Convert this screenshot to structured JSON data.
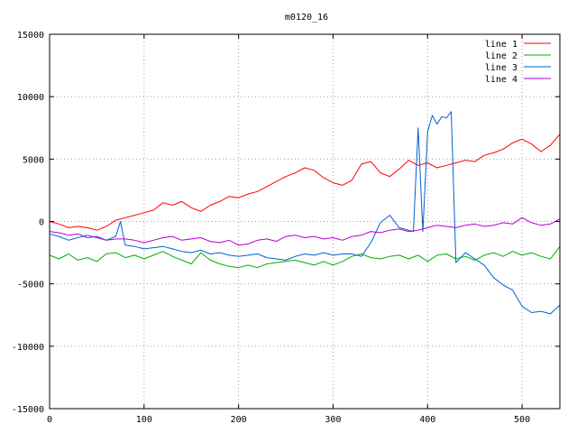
{
  "chart_data": {
    "type": "line",
    "title": "m0120_16",
    "xlabel": "",
    "ylabel": "",
    "xlim": [
      0,
      540
    ],
    "ylim": [
      -15000,
      15000
    ],
    "xticks": [
      0,
      100,
      200,
      300,
      400,
      500
    ],
    "yticks": [
      -15000,
      -10000,
      -5000,
      0,
      5000,
      10000,
      15000
    ],
    "grid": true,
    "legend_position": "top-right",
    "series": [
      {
        "name": "line 1",
        "color": "#ff0000",
        "points": [
          [
            0,
            0
          ],
          [
            10,
            -200
          ],
          [
            20,
            -500
          ],
          [
            30,
            -400
          ],
          [
            40,
            -500
          ],
          [
            50,
            -700
          ],
          [
            60,
            -400
          ],
          [
            70,
            100
          ],
          [
            80,
            300
          ],
          [
            90,
            500
          ],
          [
            100,
            700
          ],
          [
            110,
            900
          ],
          [
            120,
            1500
          ],
          [
            130,
            1300
          ],
          [
            140,
            1600
          ],
          [
            150,
            1100
          ],
          [
            160,
            800
          ],
          [
            170,
            1300
          ],
          [
            180,
            1600
          ],
          [
            190,
            2000
          ],
          [
            200,
            1900
          ],
          [
            210,
            2200
          ],
          [
            220,
            2400
          ],
          [
            230,
            2800
          ],
          [
            240,
            3200
          ],
          [
            250,
            3600
          ],
          [
            260,
            3900
          ],
          [
            270,
            4300
          ],
          [
            280,
            4100
          ],
          [
            290,
            3500
          ],
          [
            300,
            3100
          ],
          [
            310,
            2900
          ],
          [
            320,
            3300
          ],
          [
            330,
            4600
          ],
          [
            340,
            4800
          ],
          [
            350,
            3900
          ],
          [
            360,
            3600
          ],
          [
            370,
            4200
          ],
          [
            380,
            4900
          ],
          [
            390,
            4500
          ],
          [
            400,
            4700
          ],
          [
            410,
            4300
          ],
          [
            420,
            4500
          ],
          [
            430,
            4700
          ],
          [
            440,
            4900
          ],
          [
            450,
            4800
          ],
          [
            460,
            5300
          ],
          [
            470,
            5500
          ],
          [
            480,
            5800
          ],
          [
            490,
            6300
          ],
          [
            500,
            6600
          ],
          [
            510,
            6200
          ],
          [
            520,
            5600
          ],
          [
            530,
            6100
          ],
          [
            540,
            7000
          ]
        ]
      },
      {
        "name": "line 2",
        "color": "#00b000",
        "points": [
          [
            0,
            -2700
          ],
          [
            10,
            -3000
          ],
          [
            20,
            -2600
          ],
          [
            30,
            -3100
          ],
          [
            40,
            -2900
          ],
          [
            50,
            -3200
          ],
          [
            60,
            -2600
          ],
          [
            70,
            -2500
          ],
          [
            80,
            -2900
          ],
          [
            90,
            -2700
          ],
          [
            100,
            -3000
          ],
          [
            110,
            -2700
          ],
          [
            120,
            -2400
          ],
          [
            130,
            -2800
          ],
          [
            140,
            -3100
          ],
          [
            150,
            -3400
          ],
          [
            160,
            -2500
          ],
          [
            170,
            -3100
          ],
          [
            180,
            -3400
          ],
          [
            190,
            -3600
          ],
          [
            200,
            -3700
          ],
          [
            210,
            -3500
          ],
          [
            220,
            -3700
          ],
          [
            230,
            -3400
          ],
          [
            240,
            -3300
          ],
          [
            250,
            -3200
          ],
          [
            260,
            -3100
          ],
          [
            270,
            -3300
          ],
          [
            280,
            -3500
          ],
          [
            290,
            -3200
          ],
          [
            300,
            -3500
          ],
          [
            310,
            -3200
          ],
          [
            320,
            -2800
          ],
          [
            330,
            -2600
          ],
          [
            340,
            -2900
          ],
          [
            350,
            -3000
          ],
          [
            360,
            -2800
          ],
          [
            370,
            -2700
          ],
          [
            380,
            -3000
          ],
          [
            390,
            -2700
          ],
          [
            400,
            -3200
          ],
          [
            410,
            -2700
          ],
          [
            420,
            -2600
          ],
          [
            430,
            -3000
          ],
          [
            440,
            -2800
          ],
          [
            450,
            -3100
          ],
          [
            460,
            -2700
          ],
          [
            470,
            -2500
          ],
          [
            480,
            -2800
          ],
          [
            490,
            -2400
          ],
          [
            500,
            -2700
          ],
          [
            510,
            -2500
          ],
          [
            520,
            -2800
          ],
          [
            530,
            -3000
          ],
          [
            540,
            -2000
          ]
        ]
      },
      {
        "name": "line 3",
        "color": "#0060d0",
        "points": [
          [
            0,
            -1000
          ],
          [
            10,
            -1200
          ],
          [
            20,
            -1500
          ],
          [
            30,
            -1300
          ],
          [
            40,
            -1100
          ],
          [
            50,
            -1300
          ],
          [
            60,
            -1500
          ],
          [
            70,
            -1200
          ],
          [
            75,
            0
          ],
          [
            80,
            -1900
          ],
          [
            90,
            -2000
          ],
          [
            100,
            -2200
          ],
          [
            110,
            -2100
          ],
          [
            120,
            -2000
          ],
          [
            130,
            -2200
          ],
          [
            140,
            -2400
          ],
          [
            150,
            -2500
          ],
          [
            160,
            -2300
          ],
          [
            170,
            -2600
          ],
          [
            180,
            -2500
          ],
          [
            190,
            -2700
          ],
          [
            200,
            -2800
          ],
          [
            210,
            -2700
          ],
          [
            220,
            -2600
          ],
          [
            230,
            -2900
          ],
          [
            240,
            -3000
          ],
          [
            250,
            -3100
          ],
          [
            260,
            -2800
          ],
          [
            270,
            -2600
          ],
          [
            280,
            -2700
          ],
          [
            290,
            -2500
          ],
          [
            300,
            -2700
          ],
          [
            310,
            -2600
          ],
          [
            320,
            -2600
          ],
          [
            330,
            -2800
          ],
          [
            340,
            -1700
          ],
          [
            350,
            -100
          ],
          [
            360,
            500
          ],
          [
            370,
            -500
          ],
          [
            380,
            -700
          ],
          [
            385,
            -800
          ],
          [
            390,
            7500
          ],
          [
            395,
            -800
          ],
          [
            400,
            7200
          ],
          [
            405,
            8500
          ],
          [
            410,
            7800
          ],
          [
            415,
            8400
          ],
          [
            420,
            8300
          ],
          [
            425,
            8800
          ],
          [
            430,
            -3300
          ],
          [
            440,
            -2500
          ],
          [
            450,
            -3000
          ],
          [
            460,
            -3500
          ],
          [
            470,
            -4500
          ],
          [
            480,
            -5100
          ],
          [
            490,
            -5500
          ],
          [
            500,
            -6800
          ],
          [
            510,
            -7300
          ],
          [
            520,
            -7200
          ],
          [
            530,
            -7400
          ],
          [
            540,
            -6700
          ]
        ]
      },
      {
        "name": "line 4",
        "color": "#b000d0",
        "points": [
          [
            0,
            -800
          ],
          [
            10,
            -900
          ],
          [
            20,
            -1100
          ],
          [
            30,
            -1000
          ],
          [
            40,
            -1300
          ],
          [
            50,
            -1200
          ],
          [
            60,
            -1500
          ],
          [
            70,
            -1400
          ],
          [
            80,
            -1400
          ],
          [
            90,
            -1500
          ],
          [
            100,
            -1700
          ],
          [
            110,
            -1500
          ],
          [
            120,
            -1300
          ],
          [
            130,
            -1200
          ],
          [
            140,
            -1500
          ],
          [
            150,
            -1400
          ],
          [
            160,
            -1300
          ],
          [
            170,
            -1600
          ],
          [
            180,
            -1700
          ],
          [
            190,
            -1500
          ],
          [
            200,
            -1900
          ],
          [
            210,
            -1800
          ],
          [
            220,
            -1500
          ],
          [
            230,
            -1400
          ],
          [
            240,
            -1600
          ],
          [
            250,
            -1200
          ],
          [
            260,
            -1100
          ],
          [
            270,
            -1300
          ],
          [
            280,
            -1200
          ],
          [
            290,
            -1400
          ],
          [
            300,
            -1300
          ],
          [
            310,
            -1500
          ],
          [
            320,
            -1200
          ],
          [
            330,
            -1100
          ],
          [
            340,
            -800
          ],
          [
            350,
            -900
          ],
          [
            360,
            -700
          ],
          [
            370,
            -600
          ],
          [
            380,
            -800
          ],
          [
            390,
            -700
          ],
          [
            400,
            -500
          ],
          [
            410,
            -300
          ],
          [
            420,
            -400
          ],
          [
            430,
            -500
          ],
          [
            440,
            -300
          ],
          [
            450,
            -200
          ],
          [
            460,
            -400
          ],
          [
            470,
            -300
          ],
          [
            480,
            -100
          ],
          [
            490,
            -200
          ],
          [
            500,
            300
          ],
          [
            510,
            -100
          ],
          [
            520,
            -300
          ],
          [
            530,
            -200
          ],
          [
            540,
            200
          ]
        ]
      }
    ]
  }
}
